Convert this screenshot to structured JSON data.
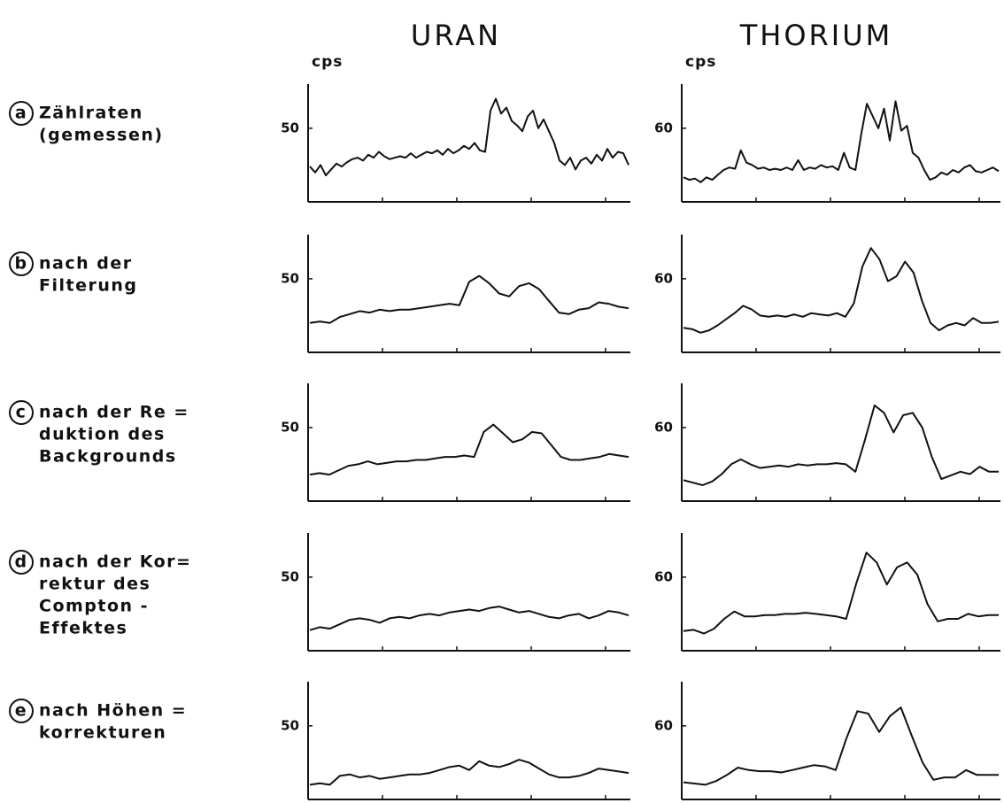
{
  "columns": [
    {
      "title": "URAN",
      "unit": "cps"
    },
    {
      "title": "THORIUM",
      "unit": "cps"
    }
  ],
  "rows": [
    {
      "letter": "a",
      "lines": [
        "Zählraten",
        "(gemessen)"
      ]
    },
    {
      "letter": "b",
      "lines": [
        "nach der",
        "Filterung"
      ]
    },
    {
      "letter": "c",
      "lines": [
        "nach der Re =",
        "duktion des",
        "Backgrounds"
      ]
    },
    {
      "letter": "d",
      "lines": [
        "nach der Kor=",
        "rektur des",
        "Compton -",
        "Effektes"
      ]
    },
    {
      "letter": "e",
      "lines": [
        "nach Höhen =",
        "korrekturen"
      ]
    }
  ],
  "chart_data": [
    {
      "type": "line",
      "ylim": [
        0,
        80
      ],
      "yticks": [
        50
      ],
      "values": [
        24,
        20,
        25,
        18,
        22,
        26,
        24,
        27,
        29,
        30,
        28,
        32,
        30,
        34,
        31,
        29,
        30,
        31,
        30,
        33,
        30,
        32,
        34,
        33,
        35,
        32,
        36,
        33,
        35,
        38,
        36,
        40,
        35,
        34,
        62,
        70,
        60,
        64,
        55,
        52,
        48,
        58,
        62,
        50,
        56,
        48,
        40,
        28,
        25,
        30,
        22,
        28,
        30,
        26,
        32,
        28,
        36,
        30,
        34,
        33,
        25
      ]
    },
    {
      "type": "line",
      "ylim": [
        0,
        96
      ],
      "yticks": [
        60
      ],
      "values": [
        20,
        18,
        19,
        16,
        20,
        18,
        22,
        26,
        28,
        27,
        42,
        32,
        30,
        27,
        28,
        26,
        27,
        26,
        28,
        26,
        34,
        26,
        28,
        27,
        30,
        28,
        29,
        26,
        40,
        28,
        26,
        55,
        80,
        70,
        60,
        76,
        50,
        82,
        58,
        62,
        40,
        36,
        26,
        18,
        20,
        24,
        22,
        26,
        24,
        28,
        30,
        25,
        24,
        26,
        28,
        25
      ]
    },
    {
      "type": "line",
      "ylim": [
        0,
        80
      ],
      "yticks": [
        50
      ],
      "values": [
        20,
        21,
        20,
        24,
        26,
        28,
        27,
        29,
        28,
        29,
        29,
        30,
        31,
        32,
        33,
        32,
        48,
        52,
        47,
        40,
        38,
        45,
        47,
        43,
        35,
        27,
        26,
        29,
        30,
        34,
        33,
        31,
        30
      ]
    },
    {
      "type": "line",
      "ylim": [
        0,
        96
      ],
      "yticks": [
        60
      ],
      "values": [
        20,
        19,
        16,
        18,
        22,
        27,
        32,
        38,
        35,
        30,
        29,
        30,
        29,
        31,
        29,
        32,
        31,
        30,
        32,
        29,
        40,
        70,
        85,
        76,
        58,
        62,
        74,
        65,
        42,
        24,
        18,
        22,
        24,
        22,
        28,
        24,
        24,
        25
      ]
    },
    {
      "type": "line",
      "ylim": [
        0,
        80
      ],
      "yticks": [
        50
      ],
      "values": [
        18,
        19,
        18,
        21,
        24,
        25,
        27,
        25,
        26,
        27,
        27,
        28,
        28,
        29,
        30,
        30,
        31,
        30,
        47,
        52,
        46,
        40,
        42,
        47,
        46,
        38,
        30,
        28,
        28,
        29,
        30,
        32,
        31,
        30
      ]
    },
    {
      "type": "line",
      "ylim": [
        0,
        96
      ],
      "yticks": [
        60
      ],
      "values": [
        17,
        15,
        13,
        16,
        22,
        30,
        34,
        30,
        27,
        28,
        29,
        28,
        30,
        29,
        30,
        30,
        31,
        30,
        24,
        50,
        78,
        72,
        56,
        70,
        72,
        60,
        36,
        18,
        21,
        24,
        22,
        28,
        24,
        24
      ]
    },
    {
      "type": "line",
      "ylim": [
        0,
        80
      ],
      "yticks": [
        50
      ],
      "values": [
        14,
        16,
        15,
        18,
        21,
        22,
        21,
        19,
        22,
        23,
        22,
        24,
        25,
        24,
        26,
        27,
        28,
        27,
        29,
        30,
        28,
        26,
        27,
        25,
        23,
        22,
        24,
        25,
        22,
        24,
        27,
        26,
        24
      ]
    },
    {
      "type": "line",
      "ylim": [
        0,
        96
      ],
      "yticks": [
        60
      ],
      "values": [
        16,
        17,
        14,
        18,
        26,
        32,
        28,
        28,
        29,
        29,
        30,
        30,
        31,
        30,
        29,
        28,
        26,
        55,
        80,
        72,
        54,
        68,
        72,
        62,
        38,
        24,
        26,
        26,
        30,
        28,
        29,
        29
      ]
    },
    {
      "type": "line",
      "ylim": [
        0,
        80
      ],
      "yticks": [
        50
      ],
      "values": [
        10,
        11,
        10,
        16,
        17,
        15,
        16,
        14,
        15,
        16,
        17,
        17,
        18,
        20,
        22,
        23,
        20,
        26,
        23,
        22,
        24,
        27,
        25,
        21,
        17,
        15,
        15,
        16,
        18,
        21,
        20,
        19,
        18
      ]
    },
    {
      "type": "line",
      "ylim": [
        0,
        96
      ],
      "yticks": [
        60
      ],
      "values": [
        14,
        13,
        12,
        15,
        20,
        26,
        24,
        23,
        23,
        22,
        24,
        26,
        28,
        27,
        24,
        50,
        72,
        70,
        55,
        68,
        75,
        52,
        30,
        16,
        18,
        18,
        24,
        20,
        20,
        20
      ]
    }
  ]
}
